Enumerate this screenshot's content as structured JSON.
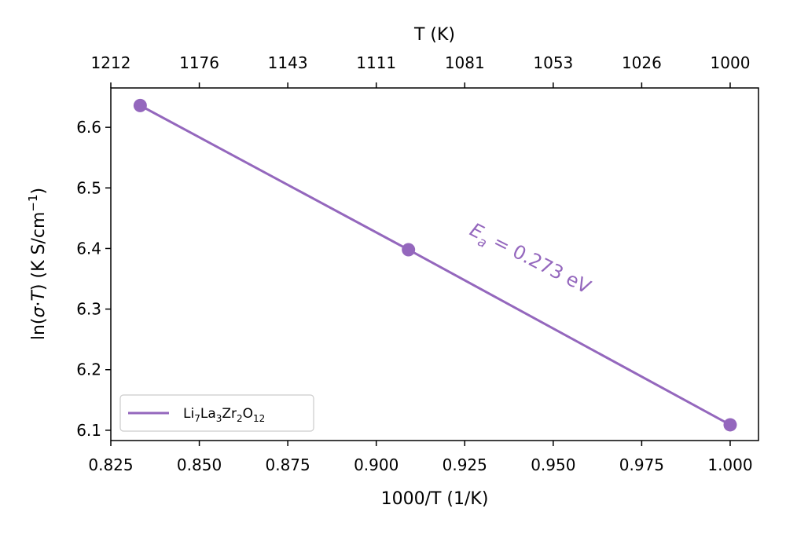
{
  "chart_data": {
    "type": "line",
    "xlabel": "1000/T (1/K)",
    "ylabel": {
      "base": "ln(",
      "sym1": "σ",
      "dot": "·",
      "sym2": "T",
      "rest": ") (K S/cm",
      "sup": "−1",
      "end": ")"
    },
    "top_xlabel": "T (K)",
    "xlim": [
      0.825,
      1.008
    ],
    "ylim": [
      6.083,
      6.665
    ],
    "x_ticks": [
      0.825,
      0.85,
      0.875,
      0.9,
      0.925,
      0.95,
      0.975,
      1.0
    ],
    "x_tick_labels": [
      "0.825",
      "0.850",
      "0.875",
      "0.900",
      "0.925",
      "0.950",
      "0.975",
      "1.000"
    ],
    "y_ticks": [
      6.1,
      6.2,
      6.3,
      6.4,
      6.5,
      6.6
    ],
    "y_tick_labels": [
      "6.1",
      "6.2",
      "6.3",
      "6.4",
      "6.5",
      "6.6"
    ],
    "top_ticks": [
      0.825,
      0.85,
      0.875,
      0.9,
      0.925,
      0.95,
      0.975,
      1.0
    ],
    "top_tick_labels": [
      "1212",
      "1176",
      "1143",
      "1111",
      "1081",
      "1053",
      "1026",
      "1000"
    ],
    "series": [
      {
        "name": {
          "base": "Li",
          "s1": "7",
          "b2": "La",
          "s2": "3",
          "b3": "Zr",
          "s3": "2",
          "b4": "O",
          "s4": "12"
        },
        "color": "#9467bd",
        "x": [
          0.8333,
          0.9091,
          1.0
        ],
        "y": [
          6.636,
          6.398,
          6.109
        ]
      }
    ],
    "annotation": {
      "sym": "E",
      "sub": "a",
      "text": " = 0.273 eV",
      "color": "#9467bd"
    },
    "legend_position": "lower-left",
    "grid": false
  }
}
